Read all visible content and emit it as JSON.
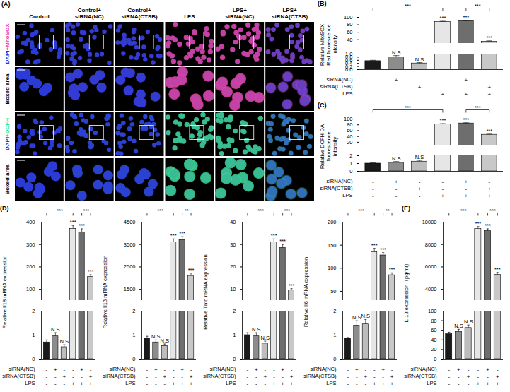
{
  "image_panel": {
    "panel": "(A)",
    "columns": [
      "Control",
      "Control+siRNA(NC)",
      "Control+siRNA(CTSB)",
      "LPS",
      "LPS+siRNA(NC)",
      "LPS+siRNA(CTSB)"
    ],
    "rows": [
      {
        "label": "DAPI+MitoSOX",
        "color": "#e8459b"
      },
      {
        "label": "Boxed area",
        "color": "#000000"
      },
      {
        "label": "DAPI+DCFH",
        "color": "#3ddc84"
      },
      {
        "label": "Boxed area",
        "color": "#000000"
      }
    ]
  },
  "chart_data": [
    {
      "type": "bar",
      "panel": "(B)",
      "y_label": "Relative MitoSOX Red fluorescence intensity",
      "categories": [
        null,
        null,
        null,
        null,
        null,
        null
      ],
      "values": [
        0.55,
        0.8,
        0.4,
        88,
        90,
        35
      ],
      "errors": [
        0.05,
        0.1,
        0.05,
        1.5,
        1.5,
        2
      ],
      "colors": [
        "#1a1a1a",
        "#8c8c8c",
        "#bdbdbd",
        "#e6e6e6",
        "#6e6e6e",
        "#c8c8c8"
      ],
      "ylim": [
        0,
        100
      ],
      "y_break": [
        1,
        30
      ],
      "yticks": [
        {
          "value": 0,
          "label": "0.0"
        },
        0.2,
        0.4,
        0.6,
        0.8,
        {
          "value": 1,
          "label": "1.0"
        },
        40,
        60,
        80,
        100
      ],
      "significance": [
        null,
        "N.S",
        "N.S",
        "***",
        "***",
        "***"
      ],
      "comparisons": [
        {
          "from": 0,
          "to": 3,
          "label": "***"
        },
        {
          "from": 4,
          "to": 5,
          "label": "***"
        }
      ],
      "x_rows": [
        {
          "label": "siRNA(NC)",
          "signs": [
            "-",
            "+",
            "-",
            "-",
            "+",
            "-"
          ]
        },
        {
          "label": "siRNA(CTSB)",
          "signs": [
            "-",
            "-",
            "+",
            "-",
            "-",
            "+"
          ]
        },
        {
          "label": "LPS",
          "signs": [
            "-",
            "-",
            "-",
            "+",
            "+",
            "+"
          ]
        }
      ]
    },
    {
      "type": "bar",
      "panel": "(C)",
      "y_label": "Relative DCFH-DA fluorescence intensity",
      "categories": [
        null,
        null,
        null,
        null,
        null,
        null
      ],
      "values": [
        1.0,
        1.1,
        1.25,
        82,
        85,
        46
      ],
      "errors": [
        0.1,
        0.15,
        0.15,
        2,
        2,
        2
      ],
      "colors": [
        "#1a1a1a",
        "#8c8c8c",
        "#bdbdbd",
        "#e6e6e6",
        "#6e6e6e",
        "#c8c8c8"
      ],
      "ylim": [
        0,
        100
      ],
      "y_break": [
        2,
        10
      ],
      "yticks": [
        0,
        1,
        2,
        20,
        40,
        60,
        80,
        100
      ],
      "significance": [
        null,
        "N.S",
        "N.S",
        "***",
        "***",
        "***"
      ],
      "comparisons": [
        {
          "from": 0,
          "to": 3,
          "label": "***"
        },
        {
          "from": 4,
          "to": 5,
          "label": "***"
        }
      ],
      "x_rows": [
        {
          "label": "siRNA(NC)",
          "signs": [
            "-",
            "+",
            "-",
            "-",
            "+",
            "-"
          ]
        },
        {
          "label": "siRNA(CTSB)",
          "signs": [
            "-",
            "-",
            "+",
            "-",
            "-",
            "+"
          ]
        },
        {
          "label": "LPS",
          "signs": [
            "-",
            "-",
            "-",
            "+",
            "+",
            "+"
          ]
        }
      ]
    },
    {
      "type": "bar",
      "panel": "(D)",
      "y_label": "Relative Il18 mRNA expression",
      "categories": [
        null,
        null,
        null,
        null,
        null,
        null
      ],
      "values": [
        0.7,
        0.95,
        0.5,
        370,
        355,
        155
      ],
      "errors": [
        0.1,
        0.15,
        0.1,
        15,
        15,
        10
      ],
      "colors": [
        "#1a1a1a",
        "#8c8c8c",
        "#bdbdbd",
        "#e6e6e6",
        "#6e6e6e",
        "#c8c8c8"
      ],
      "ylim": [
        0,
        400
      ],
      "y_break": [
        2,
        50
      ],
      "yticks": [
        0,
        1,
        2,
        100,
        200,
        300,
        400
      ],
      "significance": [
        null,
        "N.S",
        "N.S",
        "***",
        "***",
        "***"
      ],
      "comparisons": [
        {
          "from": 0,
          "to": 3,
          "label": "***"
        },
        {
          "from": 4,
          "to": 5,
          "label": "***"
        }
      ],
      "x_rows": [
        {
          "label": "siRNA(NC)",
          "signs": [
            "-",
            "+",
            "-",
            "-",
            "+",
            "-"
          ]
        },
        {
          "label": "siRNA(CTSB)",
          "signs": [
            "-",
            "-",
            "+",
            "-",
            "-",
            "+"
          ]
        },
        {
          "label": "LPS",
          "signs": [
            "-",
            "-",
            "-",
            "+",
            "+",
            "+"
          ]
        }
      ]
    },
    {
      "type": "bar",
      "y_label": "Relative Il1β mRNA expression",
      "categories": [
        null,
        null,
        null,
        null,
        null,
        null
      ],
      "values": [
        0.85,
        0.7,
        0.55,
        3600,
        3700,
        2100
      ],
      "errors": [
        0.1,
        0.1,
        0.08,
        150,
        150,
        120
      ],
      "colors": [
        "#1a1a1a",
        "#8c8c8c",
        "#bdbdbd",
        "#e6e6e6",
        "#6e6e6e",
        "#c8c8c8"
      ],
      "ylim": [
        0,
        4500
      ],
      "y_break": [
        2,
        1000
      ],
      "yticks": [
        0,
        1,
        2,
        1500,
        2500,
        3500,
        4500
      ],
      "significance": [
        null,
        "N.S",
        "N.S",
        "***",
        "***",
        "***"
      ],
      "comparisons": [
        {
          "from": 0,
          "to": 3,
          "label": "***"
        },
        {
          "from": 4,
          "to": 5,
          "label": "**"
        }
      ],
      "x_rows": [
        {
          "label": "siRNA(NC)",
          "signs": [
            "-",
            "+",
            "-",
            "-",
            "+",
            "-"
          ]
        },
        {
          "label": "siRNA(CTSB)",
          "signs": [
            "-",
            "-",
            "+",
            "-",
            "-",
            "+"
          ]
        },
        {
          "label": "LPS",
          "signs": [
            "-",
            "-",
            "-",
            "+",
            "+",
            "+"
          ]
        }
      ]
    },
    {
      "type": "bar",
      "y_label": "Relative Tnfα mRNA expression",
      "categories": [
        null,
        null,
        null,
        null,
        null,
        null
      ],
      "values": [
        1.0,
        0.95,
        0.65,
        31,
        28.5,
        9.5
      ],
      "errors": [
        0.1,
        0.15,
        0.1,
        1.5,
        1.5,
        0.8
      ],
      "colors": [
        "#1a1a1a",
        "#8c8c8c",
        "#bdbdbd",
        "#e6e6e6",
        "#6e6e6e",
        "#c8c8c8"
      ],
      "ylim": [
        0,
        40
      ],
      "y_break": [
        2,
        5
      ],
      "yticks": [
        0,
        1,
        2,
        10,
        20,
        30,
        40
      ],
      "significance": [
        null,
        "N.S",
        "N.S",
        "***",
        "***",
        "***"
      ],
      "comparisons": [
        {
          "from": 0,
          "to": 3,
          "label": "***"
        },
        {
          "from": 4,
          "to": 5,
          "label": "***"
        }
      ],
      "x_rows": [
        {
          "label": "siRNA(NC)",
          "signs": [
            "-",
            "+",
            "-",
            "-",
            "+",
            "-"
          ]
        },
        {
          "label": "siRNA(CTSB)",
          "signs": [
            "-",
            "-",
            "+",
            "-",
            "-",
            "+"
          ]
        },
        {
          "label": "LPS",
          "signs": [
            "-",
            "-",
            "-",
            "+",
            "+",
            "+"
          ]
        }
      ]
    },
    {
      "type": "bar",
      "y_label": "Relative Il6 mRNA expression",
      "categories": [
        null,
        null,
        null,
        null,
        null,
        null
      ],
      "values": [
        0.85,
        1.4,
        1.45,
        135,
        128,
        85
      ],
      "errors": [
        0.05,
        0.2,
        0.2,
        8,
        6,
        5
      ],
      "colors": [
        "#1a1a1a",
        "#8c8c8c",
        "#bdbdbd",
        "#e6e6e6",
        "#6e6e6e",
        "#c8c8c8"
      ],
      "ylim": [
        0,
        200
      ],
      "y_break": [
        2,
        30
      ],
      "yticks": [
        0,
        1,
        2,
        50,
        100,
        150,
        200
      ],
      "significance": [
        null,
        "N.S",
        "N.S",
        "***",
        "***",
        "***"
      ],
      "comparisons": [
        {
          "from": 0,
          "to": 3,
          "label": "***"
        },
        {
          "from": 4,
          "to": 5,
          "label": "**"
        }
      ],
      "x_rows": [
        {
          "label": "siRNA(NC)",
          "signs": [
            "-",
            "+",
            "-",
            "-",
            "+",
            "-"
          ]
        },
        {
          "label": "siRNA(CTSB)",
          "signs": [
            "-",
            "-",
            "+",
            "-",
            "-",
            "+"
          ]
        },
        {
          "label": "LPS",
          "signs": [
            "-",
            "-",
            "-",
            "+",
            "+",
            "+"
          ]
        }
      ]
    },
    {
      "type": "bar",
      "panel": "(E)",
      "y_label": "IL-1β expression（pg/ml）",
      "categories": [
        null,
        null,
        null,
        null,
        null,
        null
      ],
      "values": [
        52,
        57,
        65,
        9400,
        9200,
        5300
      ],
      "errors": [
        4,
        5,
        6,
        200,
        200,
        200
      ],
      "colors": [
        "#1a1a1a",
        "#8c8c8c",
        "#bdbdbd",
        "#e6e6e6",
        "#6e6e6e",
        "#c8c8c8"
      ],
      "ylim": [
        0,
        10000
      ],
      "y_break": [
        100,
        3000
      ],
      "yticks": [
        0,
        20,
        40,
        60,
        80,
        100,
        4000,
        6000,
        8000,
        10000
      ],
      "significance": [
        null,
        "N.S",
        "N.S",
        "***",
        "***",
        "***"
      ],
      "comparisons": [
        {
          "from": 0,
          "to": 3,
          "label": "***"
        },
        {
          "from": 4,
          "to": 5,
          "label": "***"
        }
      ],
      "x_rows": [
        {
          "label": "siRNA(NC)",
          "signs": [
            "-",
            "+",
            "-",
            "-",
            "+",
            "-"
          ]
        },
        {
          "label": "siRNA(CTSB)",
          "signs": [
            "-",
            "-",
            "+",
            "-",
            "-",
            "+"
          ]
        },
        {
          "label": "LPS",
          "signs": [
            "-",
            "-",
            "-",
            "+",
            "+",
            "+"
          ]
        }
      ]
    }
  ]
}
